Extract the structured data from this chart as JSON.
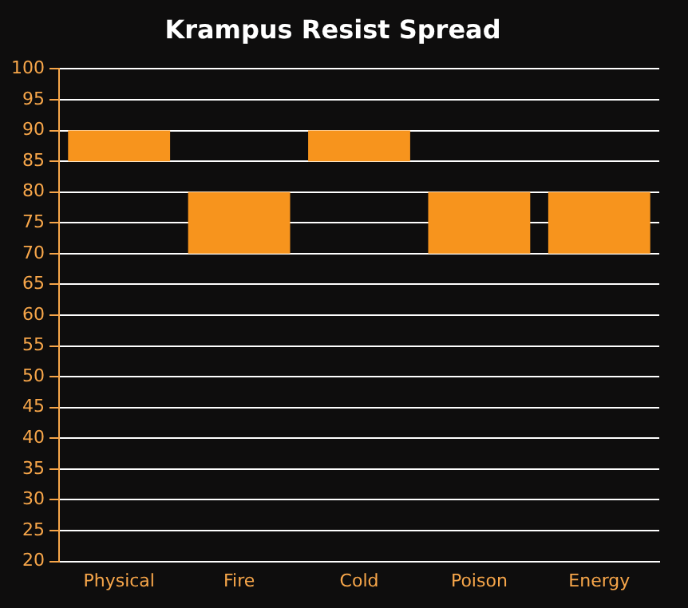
{
  "chart_data": {
    "type": "bar",
    "title": "Krampus Resist Spread",
    "categories": [
      "Physical",
      "Fire",
      "Cold",
      "Poison",
      "Energy"
    ],
    "base": [
      85,
      70,
      85,
      70,
      70
    ],
    "values": [
      5,
      10,
      5,
      10,
      10
    ],
    "color": "#f7941d",
    "ylim": [
      20,
      100
    ],
    "yticks": [
      20,
      25,
      30,
      35,
      40,
      45,
      50,
      55,
      60,
      65,
      70,
      75,
      80,
      85,
      90,
      95,
      100
    ],
    "grid": "y",
    "legend": false
  }
}
